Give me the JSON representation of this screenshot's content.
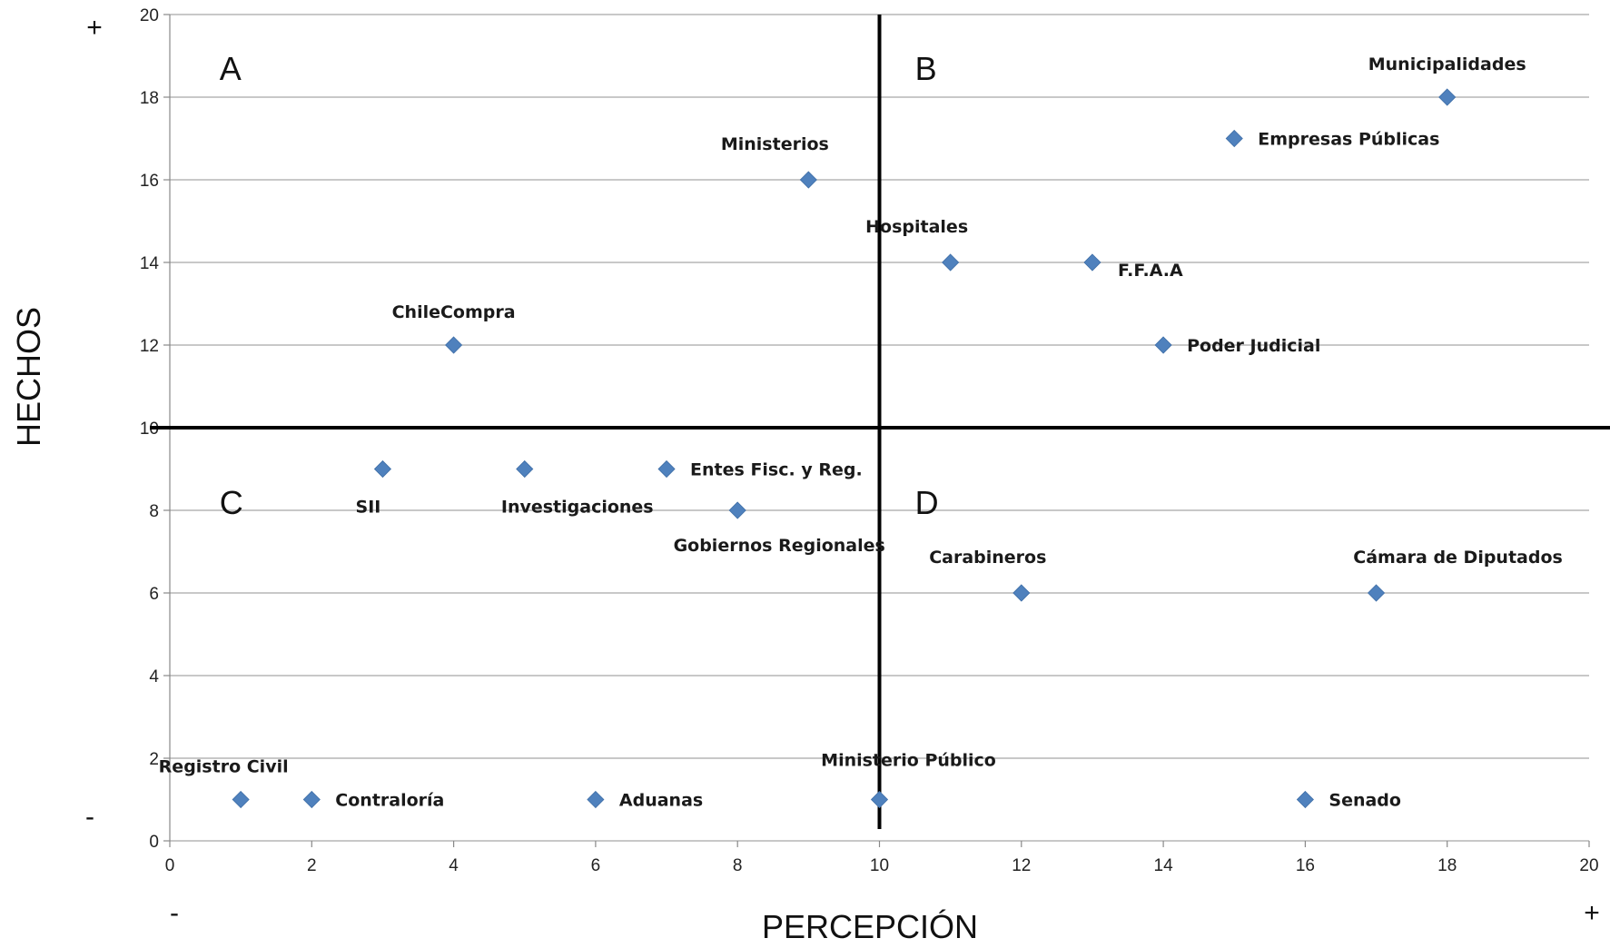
{
  "chart_data": {
    "type": "scatter",
    "xlabel": "PERCEPCIÓN",
    "ylabel": "HECHOS",
    "xlim": [
      0,
      20
    ],
    "ylim": [
      0,
      20
    ],
    "x_ticks": [
      0,
      2,
      4,
      6,
      8,
      10,
      12,
      14,
      16,
      18,
      20
    ],
    "y_ticks": [
      0,
      2,
      4,
      6,
      8,
      10,
      12,
      14,
      16,
      18,
      20
    ],
    "grid": "horizontal",
    "marker_color": "#4f81bd",
    "divider": {
      "x": 10,
      "y": 10
    },
    "signs": {
      "x_low": "-",
      "x_high": "+",
      "y_low": "-",
      "y_high": "+"
    },
    "quadrants": [
      {
        "label": "A",
        "x": 0.7,
        "y": 18.7
      },
      {
        "label": "B",
        "x": 10.5,
        "y": 18.7
      },
      {
        "label": "C",
        "x": 0.7,
        "y": 8.2
      },
      {
        "label": "D",
        "x": 10.5,
        "y": 8.2
      }
    ],
    "points": [
      {
        "label": "Municipalidades",
        "x": 18,
        "y": 18,
        "pos": "above"
      },
      {
        "label": "Empresas Públicas",
        "x": 15,
        "y": 17,
        "pos": "right"
      },
      {
        "label": "Ministerios",
        "x": 9,
        "y": 16,
        "pos": "above-left"
      },
      {
        "label": "Hospitales",
        "x": 11,
        "y": 14,
        "pos": "above-left"
      },
      {
        "label": "F.F.A.A",
        "x": 13,
        "y": 14,
        "pos": "below-right"
      },
      {
        "label": "ChileCompra",
        "x": 4,
        "y": 12,
        "pos": "above"
      },
      {
        "label": "Poder Judicial",
        "x": 14,
        "y": 12,
        "pos": "right"
      },
      {
        "label": "SII",
        "x": 3,
        "y": 9,
        "pos": "below-left"
      },
      {
        "label": "Investigaciones",
        "x": 5,
        "y": 9,
        "pos": "below-right"
      },
      {
        "label": "Entes Fisc. y Reg.",
        "x": 7,
        "y": 9,
        "pos": "right"
      },
      {
        "label": "Gobiernos Regionales",
        "x": 8,
        "y": 8,
        "pos": "below-right"
      },
      {
        "label": "Carabineros",
        "x": 12,
        "y": 6,
        "pos": "above-left"
      },
      {
        "label": "Cámara de Diputados",
        "x": 17,
        "y": 6,
        "pos": "above-right"
      },
      {
        "label": "Registro Civil",
        "x": 1,
        "y": 1,
        "pos": "above-right"
      },
      {
        "label": "Contraloría",
        "x": 2,
        "y": 1,
        "pos": "right"
      },
      {
        "label": "Aduanas",
        "x": 6,
        "y": 1,
        "pos": "right"
      },
      {
        "label": "Ministerio Público",
        "x": 10,
        "y": 1,
        "pos": "above-right"
      },
      {
        "label": "Senado",
        "x": 16,
        "y": 1,
        "pos": "right"
      }
    ]
  }
}
